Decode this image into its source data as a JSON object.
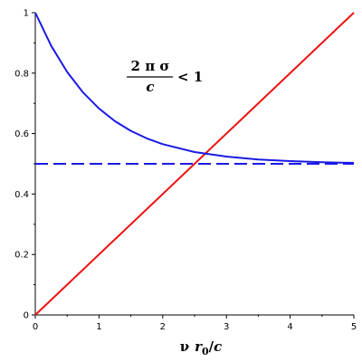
{
  "chart_data": {
    "type": "line",
    "title": "",
    "xlabel": {
      "base": "ν",
      "var": "r",
      "sub": "0",
      "slash": "/",
      "den": "c"
    },
    "ylabel": "",
    "xlim": [
      0,
      5
    ],
    "ylim": [
      0,
      1
    ],
    "x_ticks": [
      "0",
      "1",
      "2",
      "3",
      "4",
      "5"
    ],
    "y_ticks": [
      "0",
      "0.2",
      "0.4",
      "0.6",
      "0.8",
      "1"
    ],
    "grid": false,
    "legend": "none",
    "annotation": {
      "numerator": "2 π σ",
      "denominator": "c",
      "relation": "< 1"
    },
    "series": [
      {
        "color": "#ee1111",
        "style": "solid",
        "x": [
          0,
          5
        ],
        "y": [
          0,
          1
        ]
      },
      {
        "color": "#1a1ae6",
        "style": "solid",
        "x": [
          0,
          0.25,
          0.5,
          0.75,
          1.0,
          1.25,
          1.5,
          1.75,
          2.0,
          2.5,
          3.0,
          3.5,
          4.0,
          4.5,
          5.0
        ],
        "y": [
          1.0,
          0.89,
          0.804,
          0.736,
          0.683,
          0.641,
          0.609,
          0.584,
          0.565,
          0.539,
          0.524,
          0.514,
          0.509,
          0.505,
          0.503
        ]
      },
      {
        "color": "#1a1ae6",
        "style": "dashed",
        "x": [
          0,
          5
        ],
        "y": [
          0.5,
          0.5
        ]
      }
    ]
  }
}
